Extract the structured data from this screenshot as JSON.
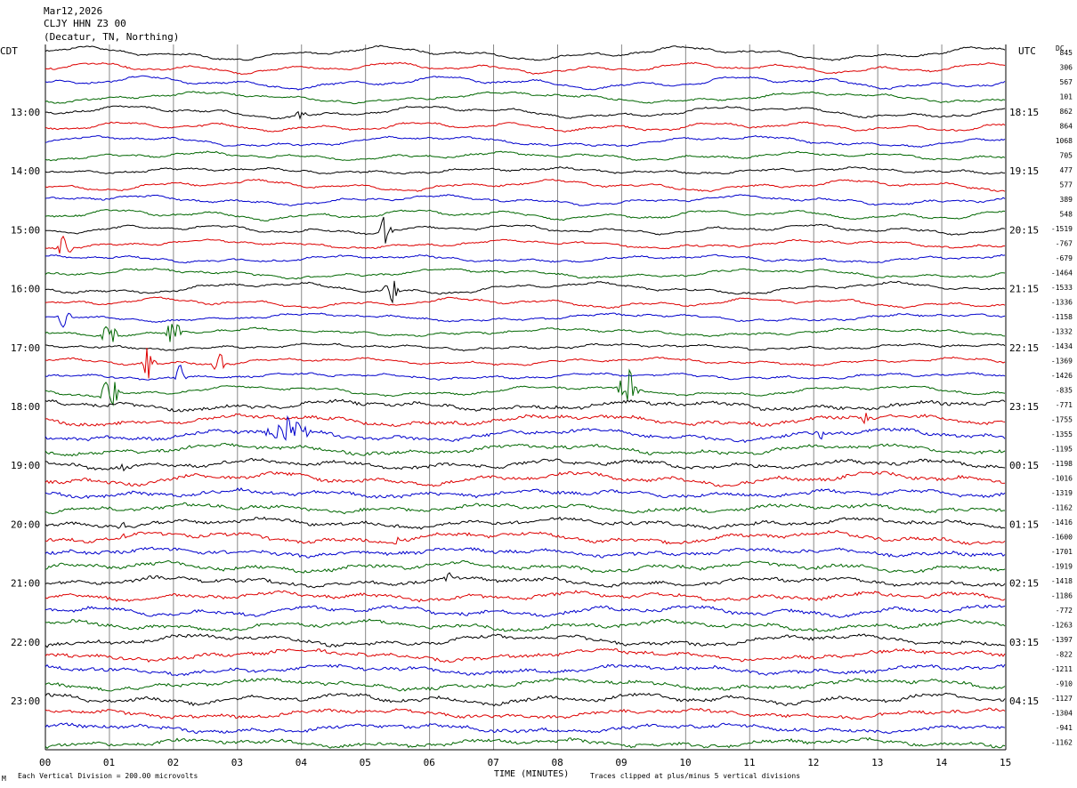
{
  "header": {
    "date": "Mar12,2026",
    "station": "CLJY HHN Z3 00",
    "location": "(Decatur, TN, Northing)"
  },
  "left_tz": "CDT",
  "right_tz": "UTC",
  "dc_label": "DC",
  "footer": {
    "scale_note": "Each Vertical Division =  200.00 microvolts",
    "clip_note": "Traces clipped at plus/minus 5 vertical divisions",
    "corner_mark": "M"
  },
  "chart_data": {
    "type": "line",
    "xlabel": "TIME (MINUTES)",
    "xlim": [
      0,
      15
    ],
    "x_ticks": [
      "00",
      "01",
      "02",
      "03",
      "04",
      "05",
      "06",
      "07",
      "08",
      "09",
      "10",
      "11",
      "12",
      "13",
      "14",
      "15"
    ],
    "left_time_labels": [
      "13:00",
      "14:00",
      "15:00",
      "16:00",
      "17:00",
      "18:00",
      "19:00",
      "20:00",
      "21:00",
      "22:00",
      "23:00"
    ],
    "right_time_labels": [
      "18:15",
      "19:15",
      "20:15",
      "21:15",
      "22:15",
      "23:15",
      "00:15",
      "01:15",
      "02:15",
      "03:15",
      "04:15"
    ],
    "trace_colors": [
      "#000000",
      "#dd0000",
      "#0000cc",
      "#006600"
    ],
    "dc_offsets": [
      "845",
      "306",
      "567",
      "101",
      "862",
      "864",
      "1068",
      "705",
      "477",
      "577",
      "389",
      "548",
      "-1519",
      "-767",
      "-679",
      "-1464",
      "-1533",
      "-1336",
      "-1158",
      "-1332",
      "-1434",
      "-1369",
      "-1426",
      "-835",
      "-771",
      "-1755",
      "-1355",
      "-1195",
      "-1198",
      "-1016",
      "-1319",
      "-1162",
      "-1416",
      "-1600",
      "-1701",
      "-1919",
      "-1418",
      "-1186",
      "-772",
      "-1263",
      "-1397",
      "-822",
      "-1211",
      "-910",
      "-1127",
      "-1304",
      "-941",
      "-1162"
    ]
  }
}
